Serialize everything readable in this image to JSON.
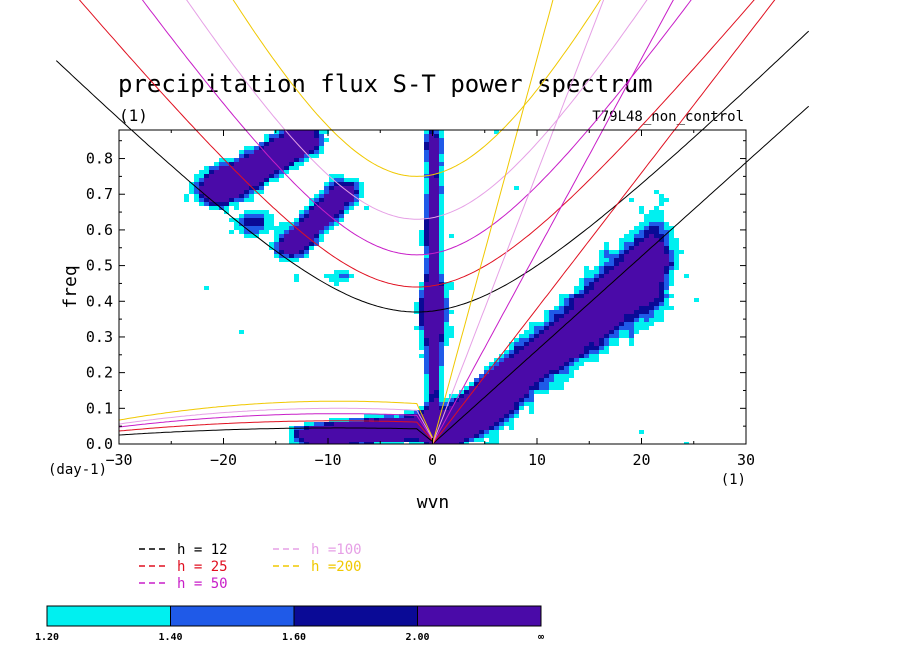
{
  "chart_data": {
    "type": "heatmap",
    "title": "precipitation flux S-T power spectrum",
    "subtitle_left": "(1)",
    "subtitle_right": "T79L48_non_control",
    "xlabel": "wvn",
    "ylabel": "freq",
    "x_unit_label": "(1)",
    "y_unit_label": "(day-1)",
    "xlim": [
      -30,
      30
    ],
    "ylim": [
      0,
      0.88
    ],
    "xticks": [
      -30,
      -20,
      -10,
      0,
      10,
      20,
      30
    ],
    "yticks": [
      0.0,
      0.1,
      0.2,
      0.3,
      0.4,
      0.5,
      0.6,
      0.7,
      0.8
    ],
    "grid": false,
    "legend_position": "bottom-left",
    "colorbar": {
      "labels": [
        "1.20",
        "1.40",
        "1.60",
        "2.00",
        "∞"
      ],
      "colors": [
        "#00f0f0",
        "#1f5ae8",
        "#0a0a96",
        "#4a0aa8"
      ]
    },
    "dispersion_curves": [
      {
        "name": "h = 12",
        "value": 12,
        "color": "#000000"
      },
      {
        "name": "h = 25",
        "value": 25,
        "color": "#e01020"
      },
      {
        "name": "h = 50",
        "value": 50,
        "color": "#c81ec8"
      },
      {
        "name": "h =100",
        "value": 100,
        "color": "#e6a0e6"
      },
      {
        "name": "h =200",
        "value": 200,
        "color": "#f0c800"
      }
    ],
    "colors": {
      "frame": "#000000",
      "background": "#ffffff"
    }
  }
}
